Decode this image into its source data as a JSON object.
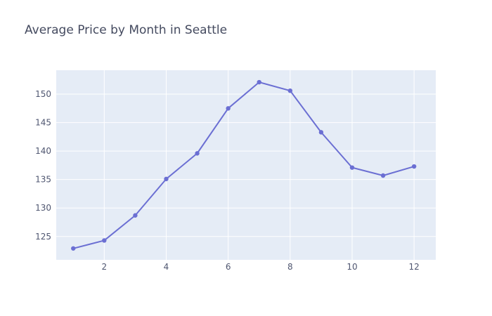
{
  "chart_data": {
    "type": "line",
    "title": "Average Price by Month in Seattle",
    "xlabel": "",
    "ylabel": "",
    "x": [
      1,
      2,
      3,
      4,
      5,
      6,
      7,
      8,
      9,
      10,
      11,
      12
    ],
    "series": [
      {
        "values": [
          122.9,
          124.3,
          128.7,
          135.1,
          139.6,
          147.5,
          152.1,
          150.6,
          143.3,
          137.1,
          135.7,
          137.3
        ]
      }
    ],
    "xlim": [
      0.45,
      12.7
    ],
    "ylim": [
      120.9,
      154.2
    ],
    "xticks": [
      2,
      4,
      6,
      8,
      10,
      12
    ],
    "yticks": [
      125,
      130,
      135,
      140,
      145,
      150
    ],
    "grid": true,
    "colors": {
      "line": "#6b6fd3",
      "plot_bg": "#e5ecf6",
      "grid": "#ffffff",
      "axis_text": "#4f5670",
      "title": "#444a5f"
    }
  }
}
